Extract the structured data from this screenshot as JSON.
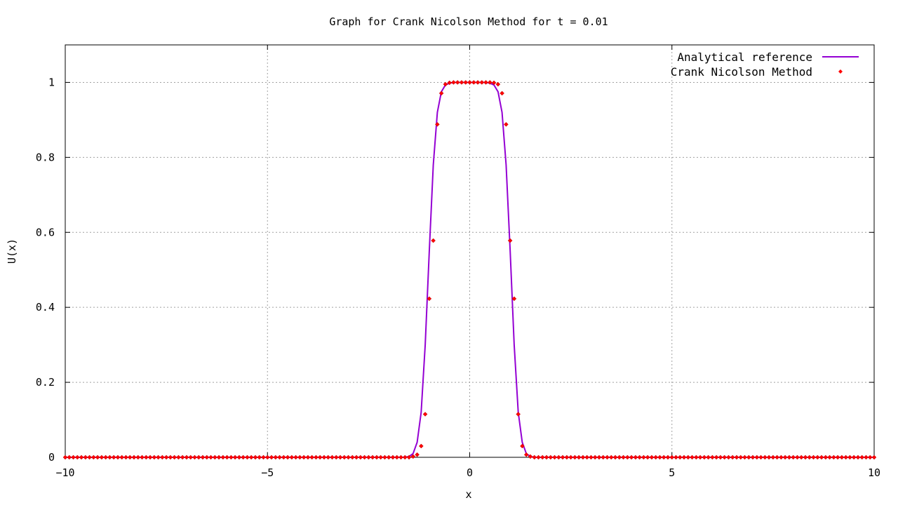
{
  "chart_data": {
    "type": "line",
    "title": "Graph for Crank Nicolson Method for t = 0.01",
    "xlabel": "x",
    "ylabel": "U(x)",
    "xlim": [
      -10,
      10
    ],
    "ylim": [
      0,
      1.1
    ],
    "xticks": [
      -10,
      -5,
      0,
      5,
      10
    ],
    "yticks": [
      0,
      0.2,
      0.4,
      0.6,
      0.8,
      1
    ],
    "xtick_labels": [
      "−10",
      "−5",
      "0",
      "5",
      "10"
    ],
    "ytick_labels": [
      "0",
      "0.2",
      "0.4",
      "0.6",
      "0.8",
      "1"
    ],
    "grid": true,
    "legend_position": "top-right",
    "series": [
      {
        "name": "Analytical reference",
        "kind": "line",
        "color": "#9400d3",
        "x": [
          -10,
          -1.6,
          -1.5,
          -1.4,
          -1.3,
          -1.2,
          -1.1,
          -1.0,
          -0.9,
          -0.8,
          -0.7,
          -0.6,
          -0.5,
          -0.4,
          0.4,
          0.5,
          0.6,
          0.7,
          0.8,
          0.9,
          1.0,
          1.1,
          1.2,
          1.3,
          1.4,
          1.5,
          1.6,
          10
        ],
        "y": [
          0,
          0,
          0.002,
          0.01,
          0.04,
          0.12,
          0.3,
          0.55,
          0.78,
          0.92,
          0.975,
          0.993,
          0.998,
          1,
          1,
          0.998,
          0.993,
          0.975,
          0.92,
          0.78,
          0.55,
          0.3,
          0.12,
          0.04,
          0.01,
          0.002,
          0,
          0
        ]
      },
      {
        "name": "Crank Nicolson Method",
        "kind": "points",
        "color": "#ff0000",
        "x_start": -10,
        "x_end": 10,
        "x_step": 0.1,
        "y_nonzero": [
          [
            -1.4,
            0.002
          ],
          [
            -1.3,
            0.007
          ],
          [
            -1.2,
            0.03
          ],
          [
            -1.1,
            0.115
          ],
          [
            -1.0,
            0.423
          ],
          [
            -0.9,
            0.578
          ],
          [
            -0.8,
            0.888
          ],
          [
            -0.7,
            0.971
          ],
          [
            -0.6,
            0.995
          ],
          [
            -0.5,
            0.999
          ],
          [
            -0.4,
            1
          ],
          [
            -0.3,
            1
          ],
          [
            -0.2,
            1
          ],
          [
            -0.1,
            1
          ],
          [
            0,
            1
          ],
          [
            0.1,
            1
          ],
          [
            0.2,
            1
          ],
          [
            0.3,
            1
          ],
          [
            0.4,
            1
          ],
          [
            0.5,
            1
          ],
          [
            0.6,
            0.999
          ],
          [
            0.7,
            0.995
          ],
          [
            0.8,
            0.971
          ],
          [
            0.9,
            0.888
          ],
          [
            1.0,
            0.578
          ],
          [
            1.1,
            0.423
          ],
          [
            1.2,
            0.115
          ],
          [
            1.3,
            0.03
          ],
          [
            1.4,
            0.007
          ],
          [
            1.5,
            0.002
          ]
        ]
      }
    ]
  }
}
